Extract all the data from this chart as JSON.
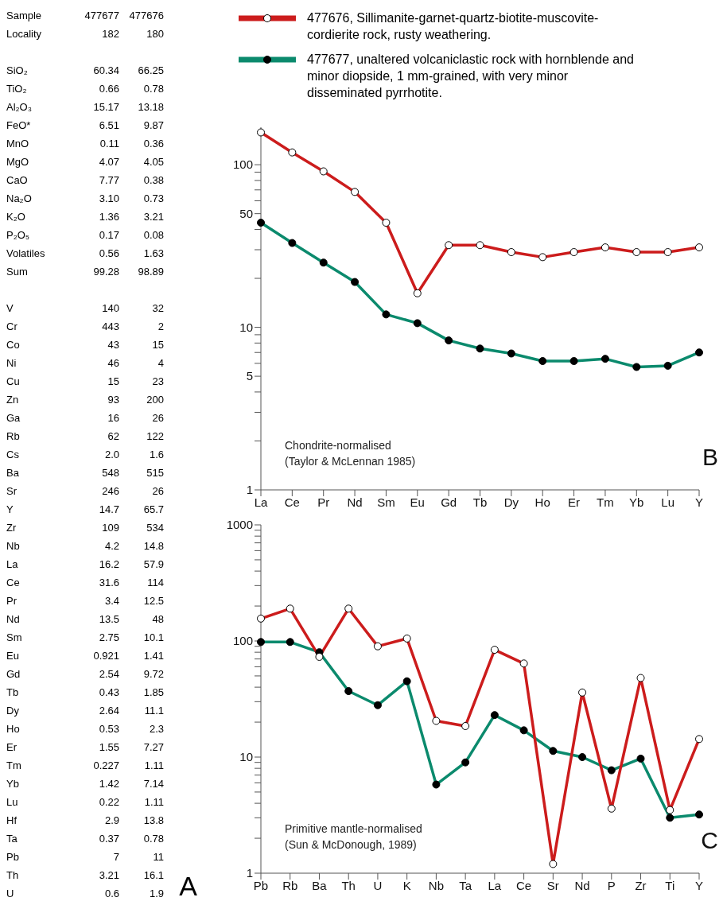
{
  "chart_data": [
    {
      "type": "other",
      "legend_title": "Sample",
      "categories": [
        "Locality",
        null,
        "SiO₂",
        "TiO₂",
        "Al₂O₃",
        "FeO*",
        "MnO",
        "MgO",
        "CaO",
        "Na₂O",
        "K₂O",
        "P₂O₅",
        "Volatiles",
        "Sum",
        null,
        "V",
        "Cr",
        "Co",
        "Ni",
        "Cu",
        "Zn",
        "Ga",
        "Rb",
        "Cs",
        "Ba",
        "Sr",
        "Y",
        "Zr",
        "Nb",
        "La",
        "Ce",
        "Pr",
        "Nd",
        "Sm",
        "Eu",
        "Gd",
        "Tb",
        "Dy",
        "Ho",
        "Er",
        "Tm",
        "Yb",
        "Lu",
        "Hf",
        "Ta",
        "Pb",
        "Th",
        "U"
      ],
      "series": [
        {
          "name": "477677",
          "values": [
            182,
            null,
            60.34,
            0.66,
            15.17,
            6.51,
            0.11,
            4.07,
            7.77,
            3.1,
            1.36,
            0.17,
            0.56,
            99.28,
            null,
            140,
            443,
            43,
            46,
            15,
            93,
            16,
            62,
            2,
            548,
            246,
            14.7,
            109,
            4.2,
            16.2,
            31.6,
            3.4,
            13.5,
            2.75,
            0.921,
            2.54,
            0.43,
            2.64,
            0.53,
            1.55,
            0.227,
            1.42,
            0.22,
            2.9,
            0.37,
            7,
            3.21,
            0.6
          ],
          "value_labels": [
            "182",
            null,
            "60.34",
            "0.66",
            "15.17",
            "6.51",
            "0.11",
            "4.07",
            "7.77",
            "3.10",
            "1.36",
            "0.17",
            "0.56",
            "99.28",
            null,
            "140",
            "443",
            "43",
            "46",
            "15",
            "93",
            "16",
            "62",
            "2.0",
            "548",
            "246",
            "14.7",
            "109",
            "4.2",
            "16.2",
            "31.6",
            "3.4",
            "13.5",
            "2.75",
            "0.921",
            "2.54",
            "0.43",
            "2.64",
            "0.53",
            "1.55",
            "0.227",
            "1.42",
            "0.22",
            "2.9",
            "0.37",
            "7",
            "3.21",
            "0.6"
          ]
        },
        {
          "name": "477676",
          "values": [
            180,
            null,
            66.25,
            0.78,
            13.18,
            9.87,
            0.36,
            4.05,
            0.38,
            0.73,
            3.21,
            0.08,
            1.63,
            98.89,
            null,
            32,
            2,
            15,
            4,
            23,
            200,
            26,
            122,
            1.6,
            515,
            26,
            65.7,
            534,
            14.8,
            57.9,
            114,
            12.5,
            48,
            10.1,
            1.41,
            9.72,
            1.85,
            11.1,
            2.3,
            7.27,
            1.11,
            7.14,
            1.11,
            13.8,
            0.78,
            11,
            16.1,
            1.9
          ]
        }
      ],
      "data_labels": true,
      "annotations": [
        "A"
      ]
    },
    {
      "type": "line",
      "categories": [
        "La",
        "Ce",
        "Pr",
        "Nd",
        "Sm",
        "Eu",
        "Gd",
        "Tb",
        "Dy",
        "Ho",
        "Er",
        "Tm",
        "Yb",
        "Lu",
        "Y"
      ],
      "series": [
        {
          "name": "477676, Sillimanite-garnet-quartz-biotite-muscovite-cordierite rock, rusty weathering.",
          "color": "#cc1c1c",
          "values": [
            158,
            119,
            91,
            68,
            44,
            16.2,
            32,
            32,
            29,
            27,
            29,
            31,
            29,
            29,
            31
          ]
        },
        {
          "name": "477677, unaltered volcaniclastic rock with hornblende and minor diopside, 1 mm-grained, with very minor disseminated pyrrhotite.",
          "color": "#0b8a6d",
          "values": [
            44,
            33,
            25,
            19,
            12,
            10.6,
            8.3,
            7.4,
            6.9,
            6.2,
            6.2,
            6.4,
            5.7,
            5.8,
            7
          ]
        }
      ],
      "log": "y",
      "ylim": [
        1,
        170
      ],
      "yticks": [
        1,
        {
          "value": 2,
          "label": null
        },
        {
          "value": 3,
          "label": null
        },
        {
          "value": 4,
          "label": null
        },
        5,
        {
          "value": 6,
          "label": null
        },
        {
          "value": 7,
          "label": null
        },
        {
          "value": 8,
          "label": null
        },
        {
          "value": 9,
          "label": null
        },
        10,
        {
          "value": 20,
          "label": null
        },
        {
          "value": 30,
          "label": null
        },
        {
          "value": 40,
          "label": null
        },
        50,
        {
          "value": 60,
          "label": null
        },
        {
          "value": 70,
          "label": null
        },
        {
          "value": 80,
          "label": null
        },
        {
          "value": 90,
          "label": null
        },
        100
      ],
      "legend": "top",
      "marker": "circle",
      "line_style": "solid",
      "grid": false,
      "annotations": [
        "Chondrite-normalised\n(Taylor & McLennan 1985)",
        "B"
      ]
    },
    {
      "type": "line",
      "categories": [
        "Pb",
        "Rb",
        "Ba",
        "Th",
        "U",
        "K",
        "Nb",
        "Ta",
        "La",
        "Ce",
        "Sr",
        "Nd",
        "P",
        "Zr",
        "Ti",
        "Y"
      ],
      "series": [
        {
          "color": "#cc1c1c",
          "values": [
            156,
            190,
            73,
            190,
            90,
            105,
            20.5,
            18.5,
            84,
            64,
            1.2,
            36,
            3.6,
            48,
            3.5,
            14.3
          ]
        },
        {
          "color": "#0b8a6d",
          "values": [
            98,
            98,
            80,
            37,
            28,
            45,
            5.8,
            9,
            23,
            17,
            11.3,
            10,
            7.7,
            9.7,
            3,
            3.2
          ]
        }
      ],
      "log": "y",
      "ylim": [
        1,
        1000
      ],
      "yticks": [
        1,
        {
          "value": 2,
          "label": null
        },
        {
          "value": 3,
          "label": null
        },
        {
          "value": 4,
          "label": null
        },
        {
          "value": 5,
          "label": null
        },
        {
          "value": 6,
          "label": null
        },
        {
          "value": 7,
          "label": null
        },
        {
          "value": 8,
          "label": null
        },
        {
          "value": 9,
          "label": null
        },
        10,
        {
          "value": 20,
          "label": null
        },
        {
          "value": 30,
          "label": null
        },
        {
          "value": 40,
          "label": null
        },
        {
          "value": 50,
          "label": null
        },
        {
          "value": 60,
          "label": null
        },
        {
          "value": 70,
          "label": null
        },
        {
          "value": 80,
          "label": null
        },
        {
          "value": 90,
          "label": null
        },
        100,
        {
          "value": 200,
          "label": null
        },
        {
          "value": 300,
          "label": null
        },
        {
          "value": 400,
          "label": null
        },
        {
          "value": 500,
          "label": null
        },
        {
          "value": 600,
          "label": null
        },
        {
          "value": 700,
          "label": null
        },
        {
          "value": 800,
          "label": null
        },
        {
          "value": 900,
          "label": null
        },
        1000
      ],
      "legend": false,
      "marker": "circle",
      "line_style": "solid",
      "grid": false,
      "annotations": [
        "Primitive mantle-normalised\n(Sun & McDonough, 1989)",
        "C"
      ]
    }
  ]
}
